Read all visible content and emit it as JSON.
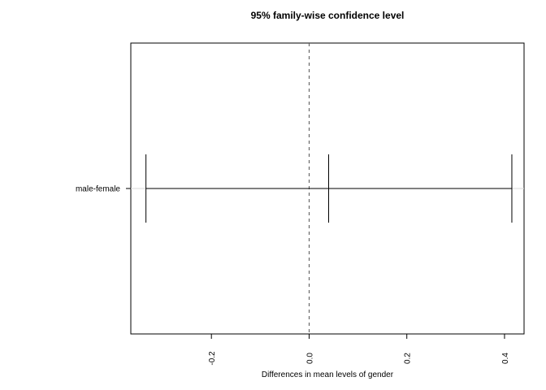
{
  "chart_data": {
    "type": "errorbar",
    "title": "95% family-wise confidence level",
    "xlabel": "Differences in mean levels of gender",
    "ylabel": "",
    "xlim": [
      -0.365,
      0.44
    ],
    "xticks": [
      {
        "value": -0.2,
        "label": "-0.2"
      },
      {
        "value": 0.0,
        "label": "0.0"
      },
      {
        "value": 0.2,
        "label": "0.2"
      },
      {
        "value": 0.4,
        "label": "0.4"
      }
    ],
    "categories": [
      "male-female"
    ],
    "intervals": [
      {
        "label": "male-female",
        "lwr": -0.334,
        "diff": 0.04,
        "upr": 0.415
      }
    ],
    "reference_line": {
      "x": 0,
      "style": "dashed"
    },
    "grid": false,
    "colors": {
      "line": "#000000",
      "reference": "#555555"
    }
  }
}
